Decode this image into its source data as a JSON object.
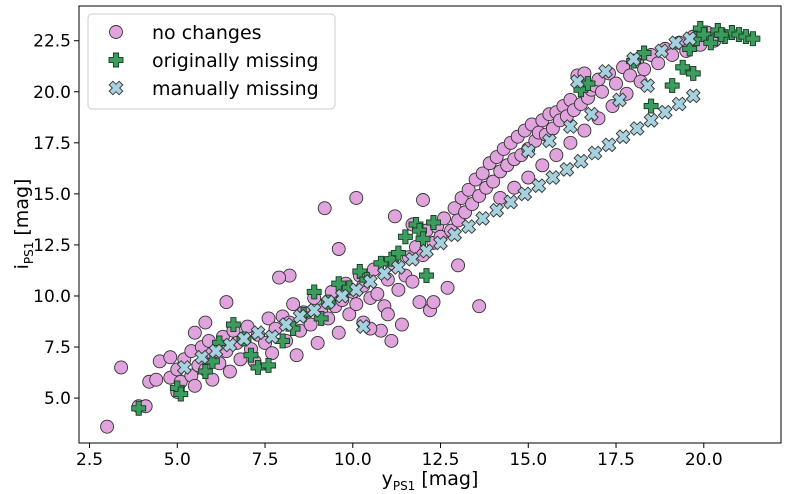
{
  "chart_data": {
    "type": "scatter",
    "title": "",
    "xlabel": {
      "main": "y",
      "sub": "PS1",
      "unit": " [mag]"
    },
    "ylabel": {
      "main": "i",
      "sub": "PS1",
      "unit": " [mag]"
    },
    "xlim": [
      2.2,
      22.2
    ],
    "ylim": [
      2.8,
      24.2
    ],
    "x_ticks": [
      2.5,
      5.0,
      7.5,
      10.0,
      12.5,
      15.0,
      17.5,
      20.0
    ],
    "x_tick_labels": [
      "2.5",
      "5.0",
      "7.5",
      "10.0",
      "12.5",
      "15.0",
      "17.5",
      "20.0"
    ],
    "y_ticks": [
      5.0,
      7.5,
      10.0,
      12.5,
      15.0,
      17.5,
      20.0,
      22.5
    ],
    "y_tick_labels": [
      "5.0",
      "7.5",
      "10.0",
      "12.5",
      "15.0",
      "17.5",
      "20.0",
      "22.5"
    ],
    "grid": false,
    "legend_position": "top-left",
    "series": [
      {
        "name": "no changes",
        "marker": "circle",
        "color": "#e0a3dd",
        "edge_color": "#333333",
        "points": [
          [
            3.0,
            3.6
          ],
          [
            3.9,
            4.6
          ],
          [
            4.1,
            4.6
          ],
          [
            3.4,
            6.5
          ],
          [
            4.2,
            5.8
          ],
          [
            4.4,
            5.9
          ],
          [
            4.5,
            6.8
          ],
          [
            4.8,
            7.0
          ],
          [
            4.8,
            6.0
          ],
          [
            5.0,
            5.3
          ],
          [
            5.0,
            6.4
          ],
          [
            5.1,
            5.8
          ],
          [
            5.2,
            6.9
          ],
          [
            5.4,
            6.1
          ],
          [
            5.4,
            7.3
          ],
          [
            5.5,
            5.6
          ],
          [
            5.5,
            8.2
          ],
          [
            5.6,
            6.6
          ],
          [
            5.7,
            7.5
          ],
          [
            5.8,
            6.4
          ],
          [
            5.9,
            7.8
          ],
          [
            6.0,
            5.9
          ],
          [
            6.0,
            7.2
          ],
          [
            6.2,
            6.7
          ],
          [
            6.3,
            8.0
          ],
          [
            6.4,
            7.3
          ],
          [
            6.5,
            6.3
          ],
          [
            6.6,
            8.3
          ],
          [
            6.7,
            7.7
          ],
          [
            6.8,
            6.9
          ],
          [
            7.0,
            8.5
          ],
          [
            7.1,
            7.4
          ],
          [
            7.2,
            6.8
          ],
          [
            7.3,
            8.1
          ],
          [
            7.5,
            7.7
          ],
          [
            7.6,
            8.9
          ],
          [
            7.7,
            7.2
          ],
          [
            7.8,
            8.4
          ],
          [
            8.0,
            9.0
          ],
          [
            8.1,
            7.8
          ],
          [
            8.2,
            8.7
          ],
          [
            8.3,
            9.6
          ],
          [
            8.4,
            7.1
          ],
          [
            8.5,
            8.3
          ],
          [
            8.6,
            9.2
          ],
          [
            8.8,
            8.6
          ],
          [
            8.9,
            9.9
          ],
          [
            9.0,
            7.7
          ],
          [
            9.1,
            9.3
          ],
          [
            9.2,
            14.3
          ],
          [
            9.3,
            8.9
          ],
          [
            9.4,
            10.2
          ],
          [
            9.5,
            9.5
          ],
          [
            9.6,
            8.2
          ],
          [
            9.7,
            9.8
          ],
          [
            9.8,
            10.6
          ],
          [
            9.9,
            9.1
          ],
          [
            10.0,
            10.2
          ],
          [
            10.1,
            9.6
          ],
          [
            10.2,
            11.0
          ],
          [
            10.3,
            8.7
          ],
          [
            10.3,
            10.5
          ],
          [
            10.5,
            9.9
          ],
          [
            10.6,
            11.3
          ],
          [
            10.7,
            10.1
          ],
          [
            10.8,
            8.3
          ],
          [
            10.9,
            9.5
          ],
          [
            11.0,
            10.8
          ],
          [
            11.1,
            7.8
          ],
          [
            11.1,
            11.6
          ],
          [
            11.2,
            13.9
          ],
          [
            11.3,
            10.3
          ],
          [
            11.4,
            8.6
          ],
          [
            11.5,
            11.0
          ],
          [
            11.6,
            11.9
          ],
          [
            11.7,
            10.7
          ],
          [
            11.7,
            13.5
          ],
          [
            11.8,
            12.4
          ],
          [
            11.9,
            9.7
          ],
          [
            12.0,
            12.0
          ],
          [
            12.0,
            14.7
          ],
          [
            12.1,
            13.2
          ],
          [
            12.2,
            9.3
          ],
          [
            12.3,
            12.6
          ],
          [
            12.4,
            13.4
          ],
          [
            12.5,
            12.9
          ],
          [
            12.6,
            13.8
          ],
          [
            12.7,
            10.4
          ],
          [
            12.8,
            13.2
          ],
          [
            12.9,
            14.3
          ],
          [
            13.0,
            13.7
          ],
          [
            13.1,
            14.8
          ],
          [
            13.2,
            14.1
          ],
          [
            13.3,
            15.2
          ],
          [
            13.4,
            14.5
          ],
          [
            13.5,
            15.7
          ],
          [
            13.6,
            9.5
          ],
          [
            13.6,
            14.9
          ],
          [
            13.7,
            16.0
          ],
          [
            13.8,
            15.3
          ],
          [
            13.9,
            16.5
          ],
          [
            14.0,
            15.6
          ],
          [
            14.1,
            16.8
          ],
          [
            14.2,
            16.1
          ],
          [
            14.3,
            17.2
          ],
          [
            14.4,
            16.4
          ],
          [
            14.5,
            17.5
          ],
          [
            14.6,
            16.7
          ],
          [
            14.7,
            17.8
          ],
          [
            14.8,
            16.9
          ],
          [
            14.9,
            18.1
          ],
          [
            15.0,
            17.2
          ],
          [
            15.1,
            18.4
          ],
          [
            15.2,
            17.6
          ],
          [
            15.3,
            18.0
          ],
          [
            15.4,
            18.6
          ],
          [
            15.5,
            17.9
          ],
          [
            15.6,
            18.9
          ],
          [
            15.7,
            18.2
          ],
          [
            15.8,
            19.0
          ],
          [
            15.9,
            18.6
          ],
          [
            16.0,
            19.3
          ],
          [
            16.1,
            18.8
          ],
          [
            16.2,
            19.6
          ],
          [
            16.3,
            19.1
          ],
          [
            16.4,
            20.8
          ],
          [
            16.5,
            19.4
          ],
          [
            16.6,
            20.9
          ],
          [
            16.7,
            19.7
          ],
          [
            16.8,
            20.1
          ],
          [
            16.9,
            20.3
          ],
          [
            17.0,
            20.6
          ],
          [
            17.1,
            20.0
          ],
          [
            17.3,
            20.9
          ],
          [
            17.5,
            20.4
          ],
          [
            17.7,
            21.2
          ],
          [
            17.9,
            20.8
          ],
          [
            18.1,
            21.5
          ],
          [
            18.3,
            21.1
          ],
          [
            18.5,
            21.8
          ],
          [
            18.7,
            21.4
          ],
          [
            18.9,
            22.1
          ],
          [
            19.1,
            21.8
          ],
          [
            19.3,
            22.4
          ],
          [
            19.5,
            22.0
          ],
          [
            19.7,
            22.7
          ],
          [
            19.9,
            22.3
          ],
          [
            20.1,
            22.9
          ],
          [
            20.3,
            22.5
          ],
          [
            14.2,
            14.8
          ],
          [
            14.6,
            15.3
          ],
          [
            15.0,
            15.8
          ],
          [
            15.4,
            16.4
          ],
          [
            15.8,
            16.9
          ],
          [
            16.2,
            17.5
          ],
          [
            16.6,
            18.1
          ],
          [
            17.0,
            18.7
          ],
          [
            17.4,
            19.3
          ],
          [
            17.8,
            19.9
          ],
          [
            18.2,
            20.5
          ],
          [
            10.1,
            14.8
          ],
          [
            9.6,
            12.3
          ],
          [
            8.2,
            11.0
          ],
          [
            7.9,
            10.9
          ],
          [
            6.4,
            9.7
          ],
          [
            5.8,
            8.7
          ],
          [
            12.3,
            9.7
          ],
          [
            11.0,
            9.1
          ],
          [
            10.5,
            8.4
          ],
          [
            13.0,
            11.5
          ]
        ]
      },
      {
        "name": "originally missing",
        "marker": "plus",
        "color": "#3a9d5d",
        "edge_color": "#1a3d24",
        "points": [
          [
            3.9,
            4.5
          ],
          [
            5.0,
            5.5
          ],
          [
            5.1,
            5.2
          ],
          [
            5.8,
            6.3
          ],
          [
            6.0,
            6.8
          ],
          [
            6.2,
            7.7
          ],
          [
            6.6,
            8.6
          ],
          [
            6.9,
            7.9
          ],
          [
            7.1,
            7.1
          ],
          [
            7.3,
            6.5
          ],
          [
            7.6,
            6.6
          ],
          [
            8.0,
            7.8
          ],
          [
            8.3,
            8.4
          ],
          [
            8.6,
            9.1
          ],
          [
            8.9,
            10.2
          ],
          [
            9.1,
            8.9
          ],
          [
            9.3,
            9.7
          ],
          [
            9.6,
            10.6
          ],
          [
            9.9,
            10.4
          ],
          [
            10.2,
            11.2
          ],
          [
            10.4,
            10.8
          ],
          [
            10.8,
            11.6
          ],
          [
            11.1,
            11.8
          ],
          [
            11.3,
            12.1
          ],
          [
            11.5,
            12.9
          ],
          [
            11.8,
            13.5
          ],
          [
            11.9,
            13.2
          ],
          [
            12.0,
            12.8
          ],
          [
            12.1,
            11.0
          ],
          [
            12.3,
            13.6
          ],
          [
            16.5,
            20.1
          ],
          [
            16.7,
            20.4
          ],
          [
            18.0,
            21.5
          ],
          [
            18.3,
            21.9
          ],
          [
            18.5,
            19.3
          ],
          [
            19.1,
            20.3
          ],
          [
            19.4,
            21.2
          ],
          [
            19.6,
            22.1
          ],
          [
            19.7,
            20.9
          ],
          [
            19.8,
            22.6
          ],
          [
            19.9,
            23.1
          ],
          [
            20.0,
            22.8
          ],
          [
            20.2,
            22.4
          ],
          [
            20.4,
            23.0
          ],
          [
            20.6,
            22.7
          ],
          [
            20.8,
            22.9
          ],
          [
            21.0,
            22.8
          ],
          [
            21.2,
            22.7
          ],
          [
            21.4,
            22.6
          ],
          [
            20.5,
            22.8
          ]
        ]
      },
      {
        "name": "manually missing",
        "marker": "x",
        "color": "#a6d1df",
        "edge_color": "#333333",
        "points": [
          [
            5.2,
            6.5
          ],
          [
            5.7,
            7.0
          ],
          [
            6.1,
            7.3
          ],
          [
            6.5,
            7.6
          ],
          [
            6.9,
            7.9
          ],
          [
            7.3,
            8.2
          ],
          [
            7.7,
            8.0
          ],
          [
            8.1,
            8.6
          ],
          [
            8.5,
            9.0
          ],
          [
            8.9,
            9.3
          ],
          [
            9.3,
            9.7
          ],
          [
            9.7,
            10.0
          ],
          [
            10.1,
            10.3
          ],
          [
            10.3,
            8.5
          ],
          [
            10.5,
            10.7
          ],
          [
            10.9,
            11.1
          ],
          [
            11.3,
            11.4
          ],
          [
            11.7,
            11.8
          ],
          [
            12.1,
            12.2
          ],
          [
            12.5,
            12.6
          ],
          [
            12.9,
            13.0
          ],
          [
            13.3,
            13.4
          ],
          [
            13.7,
            13.8
          ],
          [
            14.1,
            14.2
          ],
          [
            14.5,
            14.6
          ],
          [
            14.9,
            15.0
          ],
          [
            15.3,
            15.4
          ],
          [
            15.7,
            15.8
          ],
          [
            16.1,
            16.2
          ],
          [
            16.5,
            16.6
          ],
          [
            16.9,
            17.0
          ],
          [
            17.3,
            17.4
          ],
          [
            17.7,
            17.8
          ],
          [
            18.1,
            18.2
          ],
          [
            18.5,
            18.6
          ],
          [
            18.9,
            19.0
          ],
          [
            19.3,
            19.4
          ],
          [
            19.7,
            19.8
          ],
          [
            16.4,
            20.5
          ],
          [
            17.2,
            21.0
          ],
          [
            18.0,
            21.6
          ],
          [
            18.8,
            22.0
          ],
          [
            19.2,
            22.4
          ],
          [
            19.6,
            22.6
          ],
          [
            15.0,
            17.1
          ],
          [
            15.6,
            17.6
          ],
          [
            16.2,
            18.3
          ],
          [
            16.8,
            18.9
          ],
          [
            17.6,
            19.6
          ],
          [
            18.4,
            20.3
          ]
        ]
      }
    ]
  }
}
